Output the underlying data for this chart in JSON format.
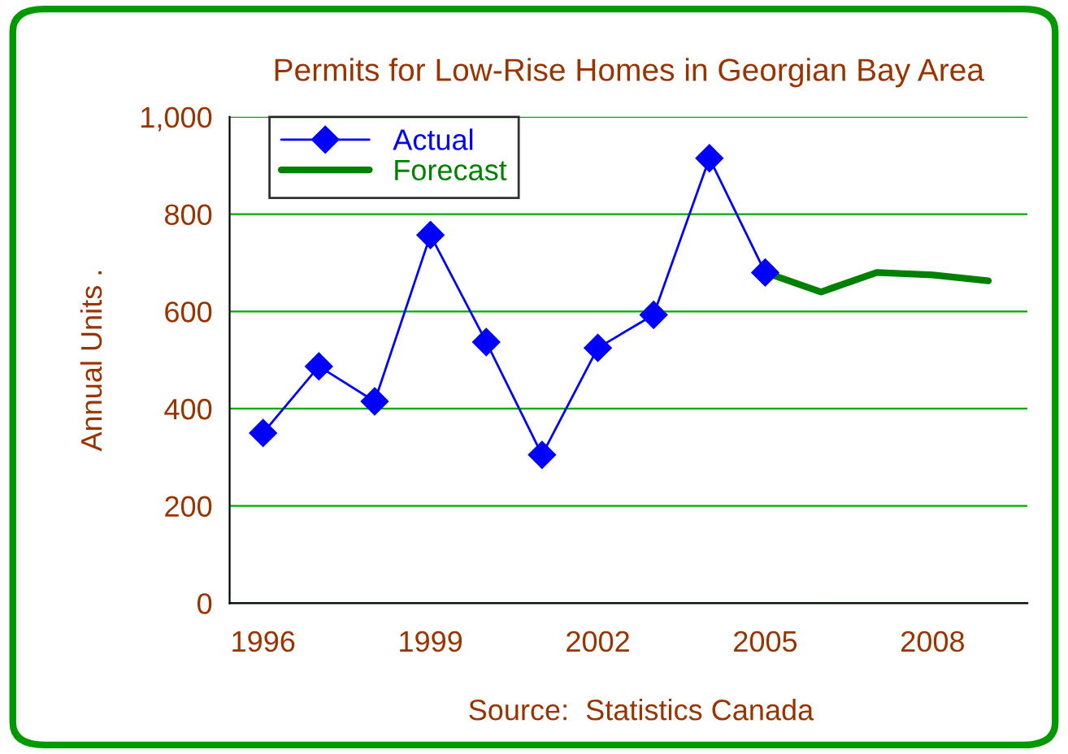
{
  "chart_data": {
    "type": "line",
    "title": "Permits for Low-Rise Homes in Georgian Bay Area",
    "ylabel": "Annual Units .",
    "annotations": [
      "Source:  Statistics Canada"
    ],
    "xlim": [
      1995.4,
      2009.7
    ],
    "xticks": [
      1996,
      1999,
      2002,
      2005,
      2008
    ],
    "ylim": [
      0,
      1000
    ],
    "yticks": [
      0,
      {
        "value": 200,
        "label": "200"
      },
      {
        "value": 400,
        "label": "400"
      },
      {
        "value": 600,
        "label": "600"
      },
      {
        "value": 800,
        "label": "800"
      },
      {
        "value": 1000,
        "label": "1,000"
      }
    ],
    "grid": "y",
    "legend": "top left",
    "series": [
      {
        "name": "Actual",
        "color": "#0000ff",
        "marker": "diamond",
        "line_style": "solid",
        "x": [
          1996,
          1997,
          1998,
          1999,
          2000,
          2001,
          2002,
          2003,
          2004,
          2005
        ],
        "values": [
          350,
          487,
          415,
          757,
          537,
          305,
          525,
          593,
          915,
          680
        ]
      },
      {
        "name": "Forecast",
        "color": "#008000",
        "marker": "none",
        "line_style": "solid",
        "x": [
          2005,
          2006,
          2007,
          2008,
          2009
        ],
        "values": [
          680,
          640,
          680,
          675,
          663
        ]
      }
    ]
  }
}
